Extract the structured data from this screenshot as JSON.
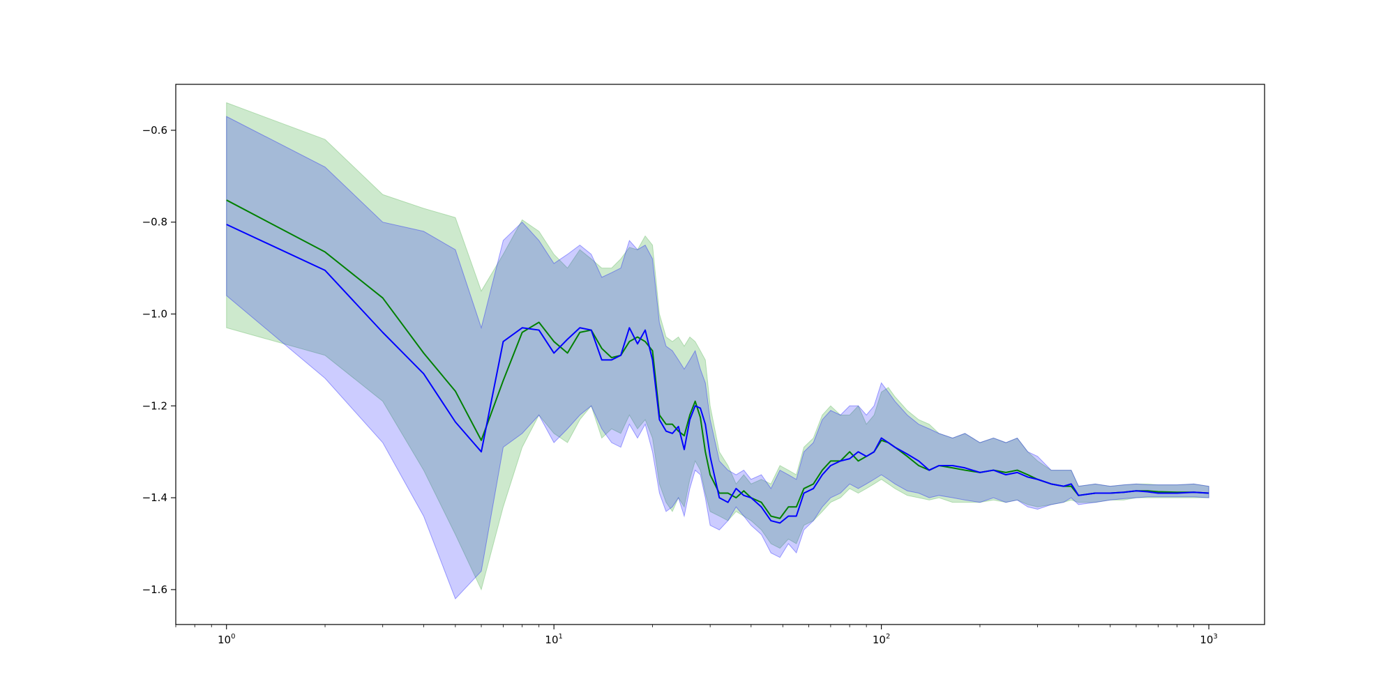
{
  "chart_data": {
    "type": "line",
    "title": "",
    "xlabel": "",
    "ylabel": "",
    "xscale": "log",
    "xlim": [
      0.7,
      1480
    ],
    "ylim": [
      -1.676,
      -0.5
    ],
    "grid": false,
    "legend": "none",
    "xticks": [
      {
        "value": 1,
        "base": "10",
        "exp": "0"
      },
      {
        "value": 10,
        "base": "10",
        "exp": "1"
      },
      {
        "value": 100,
        "base": "10",
        "exp": "2"
      },
      {
        "value": 1000,
        "base": "10",
        "exp": "3"
      }
    ],
    "yticks": [
      {
        "value": -0.6,
        "label": "−0.6"
      },
      {
        "value": -0.8,
        "label": "−0.8"
      },
      {
        "value": -1.0,
        "label": "−1.0"
      },
      {
        "value": -1.2,
        "label": "−1.2"
      },
      {
        "value": -1.4,
        "label": "−1.4"
      },
      {
        "value": -1.6,
        "label": "−1.6"
      }
    ],
    "series": [
      {
        "color": "#008000",
        "band_color": "#4daf4a",
        "band_opacity": 0.28,
        "x": [
          1,
          2,
          3,
          4,
          5,
          6,
          7,
          8,
          9,
          10,
          11,
          12,
          13,
          14,
          15,
          16,
          17,
          18,
          19,
          20,
          21,
          22,
          23,
          24,
          25,
          26,
          27,
          28,
          29,
          30,
          32,
          34,
          36,
          38,
          40,
          43,
          46,
          49,
          52,
          55,
          58,
          62,
          66,
          70,
          75,
          80,
          85,
          90,
          95,
          100,
          105,
          110,
          120,
          130,
          140,
          150,
          165,
          180,
          200,
          220,
          240,
          260,
          280,
          300,
          330,
          360,
          380,
          400,
          450,
          500,
          550,
          600,
          650,
          700,
          800,
          900,
          1000
        ],
        "y": [
          -0.752,
          -0.865,
          -0.965,
          -1.085,
          -1.168,
          -1.275,
          -1.145,
          -1.04,
          -1.018,
          -1.06,
          -1.085,
          -1.04,
          -1.035,
          -1.075,
          -1.095,
          -1.09,
          -1.06,
          -1.05,
          -1.06,
          -1.08,
          -1.22,
          -1.24,
          -1.24,
          -1.255,
          -1.265,
          -1.22,
          -1.19,
          -1.225,
          -1.3,
          -1.35,
          -1.39,
          -1.39,
          -1.4,
          -1.385,
          -1.4,
          -1.41,
          -1.44,
          -1.445,
          -1.42,
          -1.42,
          -1.38,
          -1.37,
          -1.34,
          -1.32,
          -1.32,
          -1.3,
          -1.32,
          -1.31,
          -1.3,
          -1.275,
          -1.28,
          -1.29,
          -1.31,
          -1.33,
          -1.34,
          -1.33,
          -1.335,
          -1.34,
          -1.345,
          -1.34,
          -1.345,
          -1.34,
          -1.35,
          -1.36,
          -1.37,
          -1.375,
          -1.375,
          -1.395,
          -1.39,
          -1.39,
          -1.388,
          -1.385,
          -1.385,
          -1.387,
          -1.388,
          -1.388,
          -1.39
        ],
        "lower": [
          -1.03,
          -1.09,
          -1.19,
          -1.34,
          -1.48,
          -1.6,
          -1.42,
          -1.29,
          -1.22,
          -1.26,
          -1.28,
          -1.23,
          -1.2,
          -1.27,
          -1.25,
          -1.26,
          -1.22,
          -1.25,
          -1.23,
          -1.27,
          -1.37,
          -1.41,
          -1.43,
          -1.4,
          -1.42,
          -1.36,
          -1.32,
          -1.34,
          -1.39,
          -1.43,
          -1.44,
          -1.45,
          -1.43,
          -1.44,
          -1.45,
          -1.47,
          -1.5,
          -1.51,
          -1.49,
          -1.5,
          -1.46,
          -1.45,
          -1.43,
          -1.41,
          -1.4,
          -1.38,
          -1.39,
          -1.38,
          -1.37,
          -1.36,
          -1.37,
          -1.38,
          -1.395,
          -1.4,
          -1.405,
          -1.4,
          -1.41,
          -1.41,
          -1.41,
          -1.405,
          -1.41,
          -1.405,
          -1.415,
          -1.42,
          -1.415,
          -1.41,
          -1.405,
          -1.41,
          -1.41,
          -1.405,
          -1.405,
          -1.4,
          -1.4,
          -1.4,
          -1.4,
          -1.4,
          -1.4
        ],
        "upper": [
          -0.54,
          -0.62,
          -0.74,
          -0.77,
          -0.79,
          -0.95,
          -0.87,
          -0.795,
          -0.82,
          -0.87,
          -0.9,
          -0.86,
          -0.88,
          -0.9,
          -0.9,
          -0.88,
          -0.855,
          -0.86,
          -0.83,
          -0.85,
          -1.0,
          -1.05,
          -1.06,
          -1.05,
          -1.07,
          -1.05,
          -1.06,
          -1.08,
          -1.1,
          -1.2,
          -1.3,
          -1.33,
          -1.37,
          -1.35,
          -1.37,
          -1.36,
          -1.37,
          -1.33,
          -1.34,
          -1.35,
          -1.29,
          -1.27,
          -1.22,
          -1.2,
          -1.22,
          -1.22,
          -1.2,
          -1.24,
          -1.22,
          -1.17,
          -1.16,
          -1.18,
          -1.21,
          -1.23,
          -1.24,
          -1.26,
          -1.27,
          -1.26,
          -1.28,
          -1.27,
          -1.28,
          -1.27,
          -1.3,
          -1.32,
          -1.34,
          -1.34,
          -1.34,
          -1.375,
          -1.37,
          -1.375,
          -1.372,
          -1.37,
          -1.37,
          -1.372,
          -1.372,
          -1.37,
          -1.375
        ]
      },
      {
        "color": "#0000ff",
        "band_color": "#0000ff",
        "band_opacity": 0.2,
        "x": [
          1,
          2,
          3,
          4,
          5,
          6,
          7,
          8,
          9,
          10,
          11,
          12,
          13,
          14,
          15,
          16,
          17,
          18,
          19,
          20,
          21,
          22,
          23,
          24,
          25,
          26,
          27,
          28,
          29,
          30,
          32,
          34,
          36,
          38,
          40,
          43,
          46,
          49,
          52,
          55,
          58,
          62,
          66,
          70,
          75,
          80,
          85,
          90,
          95,
          100,
          105,
          110,
          120,
          130,
          140,
          150,
          165,
          180,
          200,
          220,
          240,
          260,
          280,
          300,
          330,
          360,
          380,
          400,
          450,
          500,
          550,
          600,
          650,
          700,
          800,
          900,
          1000
        ],
        "y": [
          -0.805,
          -0.905,
          -1.04,
          -1.13,
          -1.235,
          -1.3,
          -1.06,
          -1.03,
          -1.035,
          -1.085,
          -1.055,
          -1.03,
          -1.035,
          -1.1,
          -1.1,
          -1.09,
          -1.03,
          -1.065,
          -1.035,
          -1.1,
          -1.23,
          -1.255,
          -1.26,
          -1.245,
          -1.295,
          -1.23,
          -1.2,
          -1.205,
          -1.24,
          -1.31,
          -1.4,
          -1.41,
          -1.38,
          -1.395,
          -1.4,
          -1.42,
          -1.45,
          -1.455,
          -1.44,
          -1.44,
          -1.39,
          -1.38,
          -1.35,
          -1.33,
          -1.32,
          -1.315,
          -1.3,
          -1.31,
          -1.3,
          -1.27,
          -1.28,
          -1.29,
          -1.305,
          -1.32,
          -1.34,
          -1.33,
          -1.33,
          -1.335,
          -1.345,
          -1.34,
          -1.35,
          -1.345,
          -1.355,
          -1.36,
          -1.37,
          -1.375,
          -1.37,
          -1.395,
          -1.39,
          -1.39,
          -1.388,
          -1.385,
          -1.387,
          -1.39,
          -1.39,
          -1.388,
          -1.39
        ],
        "lower": [
          -0.96,
          -1.14,
          -1.28,
          -1.44,
          -1.62,
          -1.56,
          -1.29,
          -1.26,
          -1.22,
          -1.28,
          -1.25,
          -1.22,
          -1.2,
          -1.25,
          -1.28,
          -1.29,
          -1.24,
          -1.27,
          -1.24,
          -1.3,
          -1.39,
          -1.43,
          -1.42,
          -1.4,
          -1.44,
          -1.38,
          -1.34,
          -1.35,
          -1.4,
          -1.46,
          -1.47,
          -1.45,
          -1.42,
          -1.44,
          -1.46,
          -1.48,
          -1.52,
          -1.53,
          -1.5,
          -1.52,
          -1.47,
          -1.45,
          -1.42,
          -1.4,
          -1.39,
          -1.37,
          -1.38,
          -1.37,
          -1.36,
          -1.35,
          -1.36,
          -1.37,
          -1.385,
          -1.39,
          -1.4,
          -1.395,
          -1.4,
          -1.405,
          -1.41,
          -1.4,
          -1.41,
          -1.405,
          -1.42,
          -1.425,
          -1.415,
          -1.41,
          -1.4,
          -1.415,
          -1.41,
          -1.405,
          -1.402,
          -1.4,
          -1.398,
          -1.398,
          -1.398,
          -1.398,
          -1.4
        ],
        "upper": [
          -0.57,
          -0.68,
          -0.8,
          -0.82,
          -0.86,
          -1.03,
          -0.84,
          -0.8,
          -0.84,
          -0.89,
          -0.87,
          -0.85,
          -0.87,
          -0.92,
          -0.91,
          -0.9,
          -0.84,
          -0.86,
          -0.85,
          -0.88,
          -1.02,
          -1.07,
          -1.08,
          -1.1,
          -1.12,
          -1.1,
          -1.08,
          -1.12,
          -1.15,
          -1.23,
          -1.32,
          -1.34,
          -1.35,
          -1.34,
          -1.36,
          -1.35,
          -1.38,
          -1.34,
          -1.35,
          -1.36,
          -1.3,
          -1.28,
          -1.23,
          -1.21,
          -1.22,
          -1.2,
          -1.2,
          -1.22,
          -1.2,
          -1.15,
          -1.17,
          -1.19,
          -1.22,
          -1.24,
          -1.25,
          -1.26,
          -1.27,
          -1.26,
          -1.28,
          -1.27,
          -1.28,
          -1.27,
          -1.3,
          -1.31,
          -1.34,
          -1.34,
          -1.34,
          -1.375,
          -1.37,
          -1.375,
          -1.372,
          -1.37,
          -1.372,
          -1.372,
          -1.372,
          -1.37,
          -1.375
        ]
      }
    ]
  }
}
